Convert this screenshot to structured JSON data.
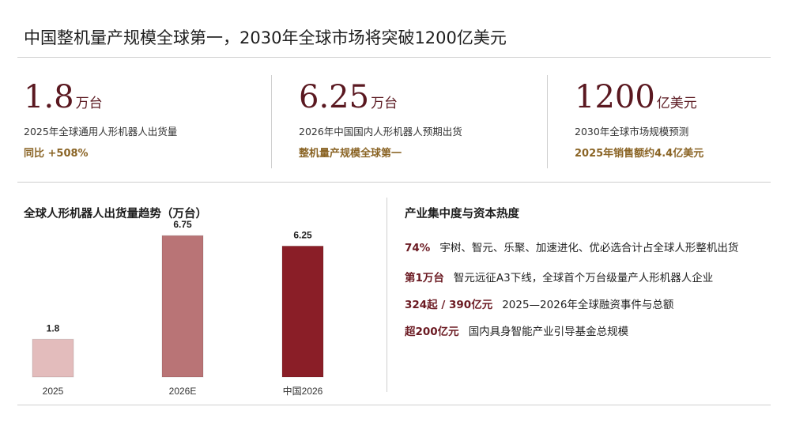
{
  "header": {
    "title": "中国整机量产规模全球第一，2030年全球市场将突破1200亿美元"
  },
  "kpis": [
    {
      "number": "1.8",
      "unit": "万台",
      "label": "2025年全球通用人形机器人出货量",
      "highlight": "同比 +508%"
    },
    {
      "number": "6.25",
      "unit": "万台",
      "label": "2026年中国国内人形机器人预期出货",
      "highlight": "整机量产规模全球第一"
    },
    {
      "number": "1200",
      "unit": "亿美元",
      "label": "2030年全球市场规模预测",
      "highlight": "2025年销售额约4.4亿美元"
    }
  ],
  "chart_data": {
    "type": "bar",
    "title": "全球人形机器人出货量趋势（万台）",
    "categories": [
      "2025",
      "2026E",
      "中国2026"
    ],
    "values": [
      1.8,
      6.75,
      6.25
    ],
    "colors": [
      "#e3bcbc",
      "#b97476",
      "#8a1e27"
    ]
  },
  "panel": {
    "title": "产业集中度与资本热度",
    "items": [
      {
        "key": "74%",
        "text": "宇树、智元、乐聚、加速进化、优必选合计占全球人形整机出货"
      },
      {
        "key": "第1万台",
        "text": "智元远征A3下线，全球首个万台级量产人形机器人企业"
      },
      {
        "key": "324起 / 390亿元",
        "text": "2025—2026年全球融资事件与总额"
      },
      {
        "key": "超200亿元",
        "text": "国内具身智能产业引导基金总规模"
      }
    ]
  }
}
